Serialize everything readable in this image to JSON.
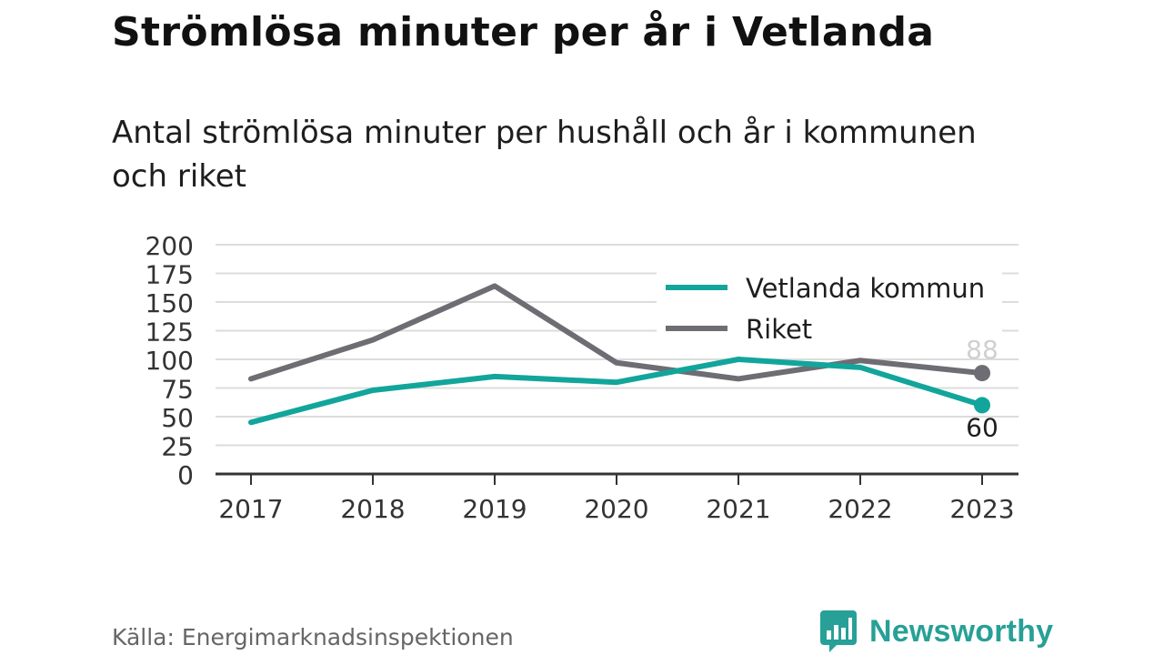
{
  "title": "Strömlösa minuter per år i Vetlanda",
  "subtitle": "Antal strömlösa minuter per hushåll och år i kommunen och riket",
  "source": "Källa: Energimarknadsinspektionen",
  "brand": {
    "name": "Newsworthy",
    "icon": "newsworthy-logo-icon",
    "color": "#27a097"
  },
  "chart_data": {
    "type": "line",
    "x": [
      "2017",
      "2018",
      "2019",
      "2020",
      "2021",
      "2022",
      "2023"
    ],
    "yticks": [
      "0",
      "25",
      "50",
      "75",
      "100",
      "125",
      "150",
      "175",
      "200"
    ],
    "ylim": [
      0,
      200
    ],
    "grid": true,
    "legend_position": "top-right",
    "series": [
      {
        "name": "Vetlanda kommun",
        "color": "#12a59b",
        "values": [
          45,
          73,
          85,
          80,
          100,
          93,
          60
        ],
        "end_label": "60"
      },
      {
        "name": "Riket",
        "color": "#6e6d73",
        "values": [
          83,
          117,
          164,
          97,
          83,
          99,
          88
        ],
        "end_label": "88"
      }
    ]
  }
}
